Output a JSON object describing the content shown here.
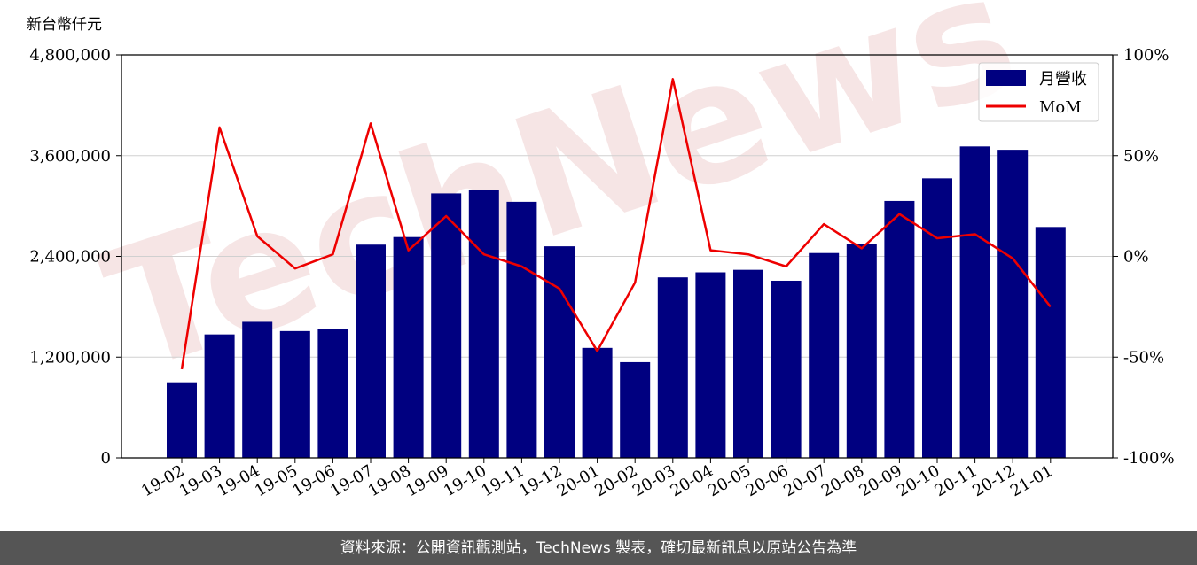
{
  "watermark": "TechNews",
  "footer": {
    "text": "資料來源：公開資訊觀測站，TechNews 製表，確切最新訊息以原站公告為準"
  },
  "colors": {
    "bar": "#000080",
    "line": "#ee0000",
    "grid": "#d0d0d0",
    "watermark": "#f0d0d0",
    "footer_bg": "#555555"
  },
  "chart_data": {
    "type": "bar",
    "unit_label": "新台幣仟元",
    "categories": [
      "19-02",
      "19-03",
      "19-04",
      "19-05",
      "19-06",
      "19-07",
      "19-08",
      "19-09",
      "19-10",
      "19-11",
      "19-12",
      "20-01",
      "20-02",
      "20-03",
      "20-04",
      "20-05",
      "20-06",
      "20-07",
      "20-08",
      "20-09",
      "20-10",
      "20-11",
      "20-12",
      "21-01"
    ],
    "series": [
      {
        "name": "月營收",
        "type": "bar",
        "axis": "left",
        "values": [
          900000,
          1470000,
          1620000,
          1510000,
          1530000,
          2540000,
          2630000,
          3150000,
          3190000,
          3050000,
          2520000,
          1310000,
          1140000,
          2150000,
          2210000,
          2240000,
          2110000,
          2440000,
          2550000,
          3060000,
          3330000,
          3710000,
          3670000,
          2750000
        ]
      },
      {
        "name": "MoM",
        "type": "line",
        "axis": "right",
        "values": [
          -56,
          64,
          10,
          -6,
          1,
          66,
          3,
          20,
          1,
          -5,
          -16,
          -47,
          -13,
          88,
          3,
          1,
          -5,
          16,
          4,
          21,
          9,
          11,
          -1,
          -25
        ]
      }
    ],
    "y_left": {
      "min": 0,
      "max": 4800000,
      "ticks": [
        0,
        1200000,
        2400000,
        3600000,
        4800000
      ],
      "tick_labels": [
        "0",
        "1,200,000",
        "2,400,000",
        "3,600,000",
        "4,800,000"
      ]
    },
    "y_right": {
      "min": -100,
      "max": 100,
      "ticks": [
        -100,
        -50,
        0,
        50,
        100
      ],
      "tick_labels": [
        "-100%",
        "-50%",
        "0%",
        "50%",
        "100%"
      ]
    },
    "grid": true,
    "legend_position": "top-right"
  }
}
